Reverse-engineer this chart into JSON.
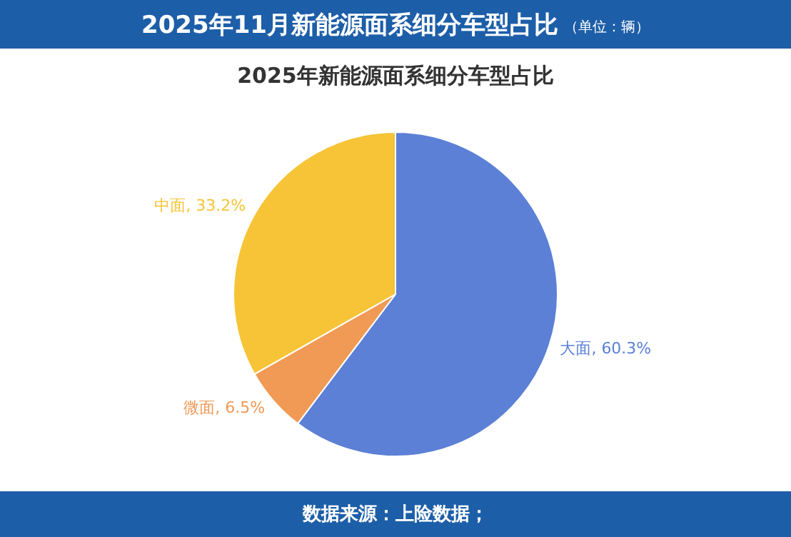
{
  "chart_data": {
    "type": "pie",
    "title": "2025年11月新能源面系细分车型占比",
    "subtitle": "（单位：辆）",
    "annotations": [
      "2025年新能源面系细分车型占比",
      "数据来源：上险数据；"
    ],
    "categories": [
      "大面",
      "微面",
      "中面"
    ],
    "values": [
      60.3,
      6.5,
      33.2
    ],
    "colors": [
      "#5b80d6",
      "#f09a55",
      "#f7c437"
    ],
    "value_labels": [
      ", 60.3%",
      ", 6.5%",
      ", 33.2%"
    ],
    "legend": false
  }
}
